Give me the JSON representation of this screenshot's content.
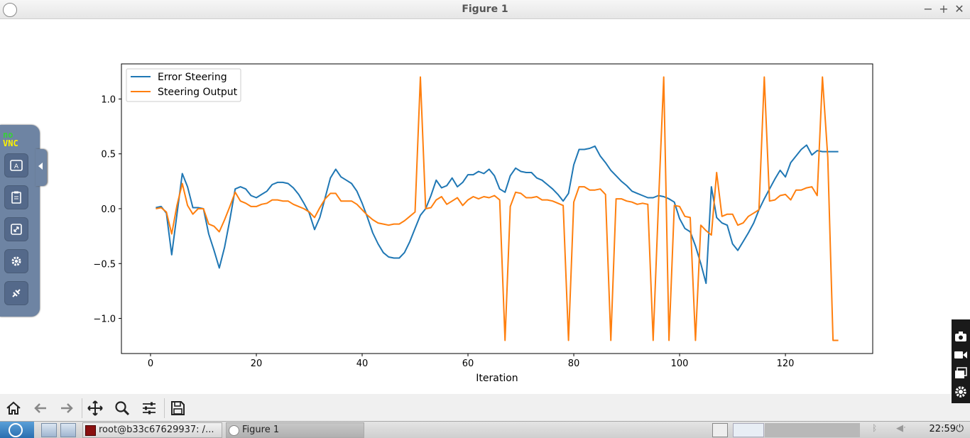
{
  "window": {
    "title": "Figure 1",
    "app_icon": "matplotlib-icon",
    "controls": [
      "minimize-icon",
      "maximize-icon",
      "close-icon"
    ]
  },
  "chart_data": {
    "type": "line",
    "xlabel": "Iteration",
    "ylabel": "",
    "xlim": [
      -5.5,
      136.5
    ],
    "ylim": [
      -1.32,
      1.32
    ],
    "xticks": [
      0,
      20,
      40,
      60,
      80,
      100,
      120
    ],
    "yticks": [
      -1.0,
      -0.5,
      0.0,
      0.5,
      1.0
    ],
    "ytick_labels": [
      "−1.0",
      "−0.5",
      "0.0",
      "0.5",
      "1.0"
    ],
    "legend_position": "top-left",
    "grid": false,
    "series": [
      {
        "name": "Error Steering",
        "color": "#1f77b4",
        "x": [
          1,
          2,
          3,
          4,
          5,
          6,
          7,
          8,
          9,
          10,
          11,
          12,
          13,
          14,
          15,
          16,
          17,
          18,
          19,
          20,
          21,
          22,
          23,
          24,
          25,
          26,
          27,
          28,
          29,
          30,
          31,
          32,
          33,
          34,
          35,
          36,
          37,
          38,
          39,
          40,
          41,
          42,
          43,
          44,
          45,
          46,
          47,
          48,
          49,
          50,
          51,
          52,
          53,
          54,
          55,
          56,
          57,
          58,
          59,
          60,
          61,
          62,
          63,
          64,
          65,
          66,
          67,
          68,
          69,
          70,
          71,
          72,
          73,
          74,
          75,
          76,
          77,
          78,
          79,
          80,
          81,
          82,
          83,
          84,
          85,
          86,
          87,
          88,
          89,
          90,
          91,
          92,
          93,
          94,
          95,
          96,
          97,
          98,
          99,
          100,
          101,
          102,
          103,
          104,
          105,
          106,
          107,
          108,
          109,
          110,
          111,
          112,
          113,
          114,
          115,
          116,
          117,
          118,
          119,
          120,
          121,
          122,
          123,
          124,
          125,
          126,
          127,
          128,
          129,
          130
        ],
        "values": [
          0.01,
          0.02,
          -0.04,
          -0.42,
          -0.05,
          0.32,
          0.2,
          0.01,
          0.01,
          0.0,
          -0.23,
          -0.38,
          -0.54,
          -0.35,
          -0.1,
          0.18,
          0.2,
          0.18,
          0.12,
          0.1,
          0.13,
          0.16,
          0.22,
          0.24,
          0.24,
          0.23,
          0.19,
          0.13,
          0.05,
          -0.04,
          -0.19,
          -0.08,
          0.1,
          0.28,
          0.36,
          0.29,
          0.26,
          0.23,
          0.16,
          0.05,
          -0.08,
          -0.22,
          -0.32,
          -0.4,
          -0.44,
          -0.45,
          -0.45,
          -0.4,
          -0.3,
          -0.18,
          -0.06,
          0.0,
          0.12,
          0.26,
          0.19,
          0.21,
          0.28,
          0.2,
          0.24,
          0.31,
          0.31,
          0.34,
          0.32,
          0.36,
          0.3,
          0.18,
          0.15,
          0.3,
          0.37,
          0.34,
          0.33,
          0.33,
          0.28,
          0.26,
          0.22,
          0.18,
          0.13,
          0.07,
          0.14,
          0.4,
          0.54,
          0.54,
          0.55,
          0.57,
          0.48,
          0.42,
          0.35,
          0.3,
          0.25,
          0.21,
          0.16,
          0.14,
          0.12,
          0.1,
          0.1,
          0.12,
          0.11,
          0.09,
          0.06,
          -0.09,
          -0.18,
          -0.21,
          -0.34,
          -0.5,
          -0.68,
          0.2,
          -0.08,
          -0.13,
          -0.15,
          -0.32,
          -0.38,
          -0.3,
          -0.22,
          -0.13,
          -0.01,
          0.09,
          0.18,
          0.27,
          0.35,
          0.29,
          0.42,
          0.48,
          0.54,
          0.58,
          0.49,
          0.53,
          0.52,
          0.52,
          0.52,
          0.52
        ]
      },
      {
        "name": "Steering Output",
        "color": "#ff7f0e",
        "x": [
          1,
          2,
          3,
          4,
          5,
          6,
          7,
          8,
          9,
          10,
          11,
          12,
          13,
          14,
          15,
          16,
          17,
          18,
          19,
          20,
          21,
          22,
          23,
          24,
          25,
          26,
          27,
          28,
          29,
          30,
          31,
          32,
          33,
          34,
          35,
          36,
          37,
          38,
          39,
          40,
          41,
          42,
          43,
          44,
          45,
          46,
          47,
          48,
          49,
          50,
          51,
          52,
          53,
          54,
          55,
          56,
          57,
          58,
          59,
          60,
          61,
          62,
          63,
          64,
          65,
          66,
          67,
          68,
          69,
          70,
          71,
          72,
          73,
          74,
          75,
          76,
          77,
          78,
          79,
          80,
          81,
          82,
          83,
          84,
          85,
          86,
          87,
          88,
          89,
          90,
          91,
          92,
          93,
          94,
          95,
          96,
          97,
          98,
          99,
          100,
          101,
          102,
          103,
          104,
          105,
          106,
          107,
          108,
          109,
          110,
          111,
          112,
          113,
          114,
          115,
          116,
          117,
          118,
          119,
          120,
          121,
          122,
          123,
          124,
          125,
          126,
          127,
          128,
          129,
          130
        ],
        "values": [
          0.0,
          0.01,
          -0.03,
          -0.23,
          0.03,
          0.23,
          0.03,
          -0.05,
          0.0,
          0.0,
          -0.14,
          -0.16,
          -0.21,
          -0.1,
          0.02,
          0.15,
          0.07,
          0.05,
          0.02,
          0.02,
          0.04,
          0.05,
          0.08,
          0.08,
          0.07,
          0.07,
          0.04,
          0.02,
          0.0,
          -0.03,
          -0.08,
          0.01,
          0.09,
          0.14,
          0.14,
          0.07,
          0.07,
          0.07,
          0.04,
          -0.01,
          -0.06,
          -0.1,
          -0.13,
          -0.14,
          -0.15,
          -0.14,
          -0.14,
          -0.11,
          -0.07,
          -0.03,
          1.2,
          0.0,
          0.01,
          0.08,
          0.11,
          0.04,
          0.07,
          0.1,
          0.03,
          0.08,
          0.11,
          0.09,
          0.11,
          0.1,
          0.12,
          0.08,
          -1.2,
          0.02,
          0.15,
          0.14,
          0.1,
          0.1,
          0.11,
          0.08,
          0.08,
          0.07,
          0.05,
          0.03,
          -1.2,
          0.06,
          0.2,
          0.2,
          0.17,
          0.17,
          0.18,
          0.13,
          -1.2,
          0.09,
          0.09,
          0.07,
          0.06,
          0.04,
          0.05,
          0.04,
          -1.2,
          0.03,
          1.2,
          -1.2,
          0.03,
          0.02,
          -0.07,
          -0.08,
          -1.2,
          -0.15,
          -0.2,
          -0.24,
          0.33,
          -0.07,
          -0.05,
          -0.05,
          -0.15,
          -0.13,
          -0.07,
          -0.04,
          -0.01,
          1.2,
          0.07,
          0.08,
          0.12,
          0.13,
          0.08,
          0.17,
          0.17,
          0.19,
          0.2,
          0.12,
          1.2,
          0.47,
          -1.2,
          -1.2
        ]
      }
    ]
  },
  "toolbar": {
    "buttons": [
      {
        "name": "home-button",
        "icon": "home-icon"
      },
      {
        "name": "back-button",
        "icon": "arrow-left-icon"
      },
      {
        "name": "forward-button",
        "icon": "arrow-right-icon"
      },
      {
        "name": "pan-button",
        "icon": "move-icon"
      },
      {
        "name": "zoom-button",
        "icon": "magnifier-icon"
      },
      {
        "name": "configure-subplots-button",
        "icon": "sliders-icon"
      },
      {
        "name": "save-button",
        "icon": "floppy-disk-icon"
      }
    ]
  },
  "novnc": {
    "logo_top": "no",
    "logo_bottom": "VNC",
    "buttons": [
      "keyboard-icon",
      "clipboard-icon",
      "fullscreen-icon",
      "settings-gear-icon",
      "disconnect-icon"
    ]
  },
  "taskbar": {
    "tasks": [
      {
        "label": "root@b33c67629937: /...",
        "icon": "terminal-icon",
        "active": false
      },
      {
        "label": "Figure 1",
        "icon": "matplotlib-icon",
        "active": true
      }
    ],
    "clock": "22:59",
    "tray_icons": [
      "window-list-icon",
      "matplotlib-icon",
      "bluetooth-icon",
      "volume-icon",
      "power-icon"
    ]
  },
  "side_panel": {
    "icons": [
      "camera-icon",
      "video-camera-icon",
      "windows-icon",
      "gear-icon"
    ]
  }
}
